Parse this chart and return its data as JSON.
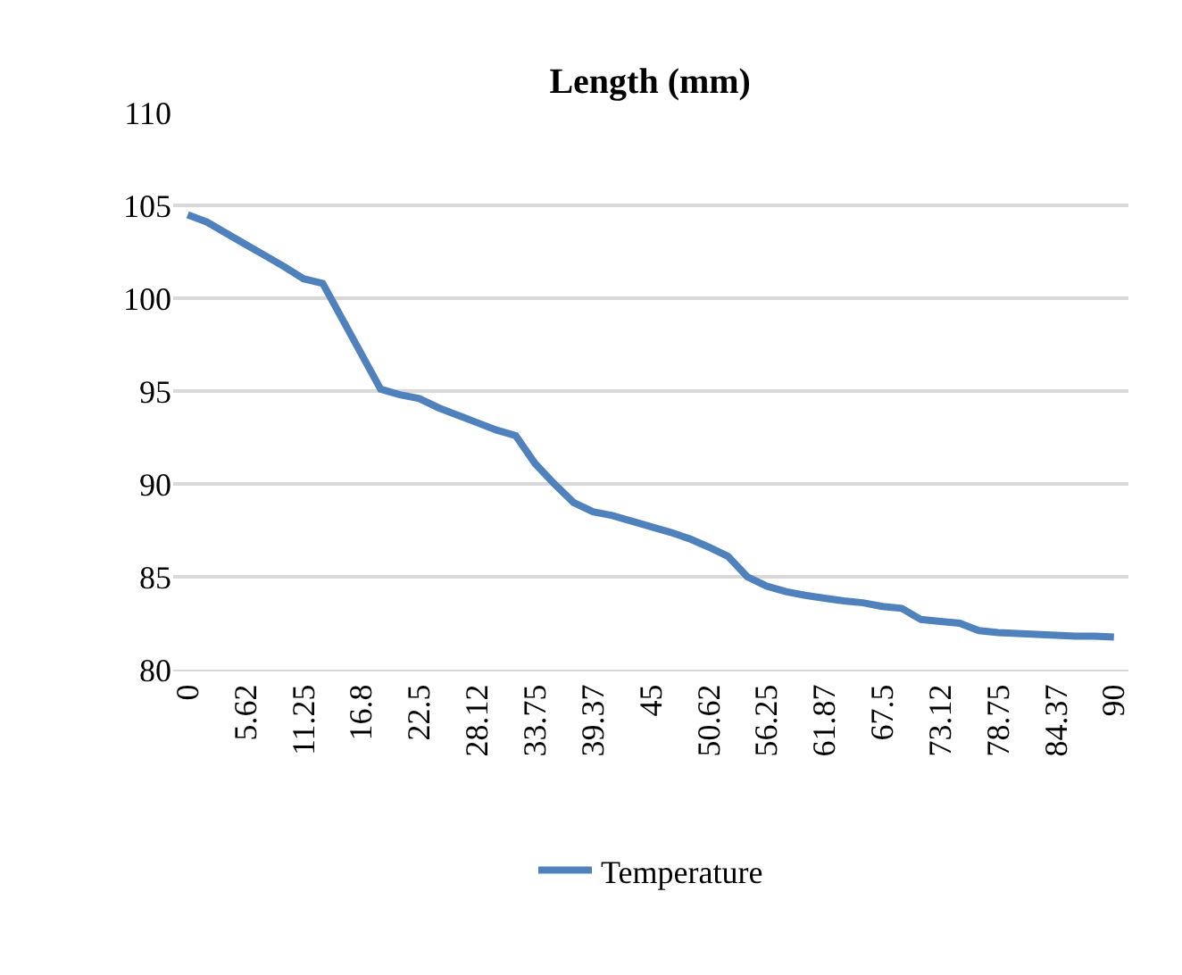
{
  "chart_data": {
    "type": "line",
    "title": "Length (mm)",
    "categories": [
      "0",
      null,
      null,
      "5.62",
      null,
      null,
      "11.25",
      null,
      null,
      "16.8",
      null,
      null,
      "22.5",
      null,
      null,
      "28.12",
      null,
      null,
      "33.75",
      null,
      null,
      "39.37",
      null,
      null,
      "45",
      null,
      null,
      "50.62",
      null,
      null,
      "56.25",
      null,
      null,
      "61.87",
      null,
      null,
      "67.5",
      null,
      null,
      "73.12",
      null,
      null,
      "78.75",
      null,
      null,
      "84.37",
      null,
      null,
      "90"
    ],
    "series": [
      {
        "name": "Temperature",
        "color": "#4f81bd",
        "values": [
          104.5,
          104.1,
          103.5,
          102.9,
          102.3,
          101.7,
          101.05,
          100.8,
          98.9,
          97.0,
          95.1,
          94.8,
          94.6,
          94.1,
          93.7,
          93.3,
          92.9,
          92.6,
          91.1,
          90.0,
          89.0,
          88.5,
          88.3,
          88.0,
          87.7,
          87.4,
          87.05,
          86.6,
          86.1,
          85.0,
          84.5,
          84.2,
          84.0,
          83.85,
          83.7,
          83.6,
          83.4,
          83.3,
          82.7,
          82.6,
          82.5,
          82.1,
          82.0,
          81.95,
          81.9,
          81.85,
          81.8,
          81.8,
          81.75
        ]
      }
    ],
    "ylim": [
      80,
      110
    ],
    "yticks": [
      80,
      85,
      90,
      95,
      100,
      105,
      110
    ],
    "grid": "y",
    "legend": "bottom",
    "marker": "none",
    "line_style": "solid"
  }
}
